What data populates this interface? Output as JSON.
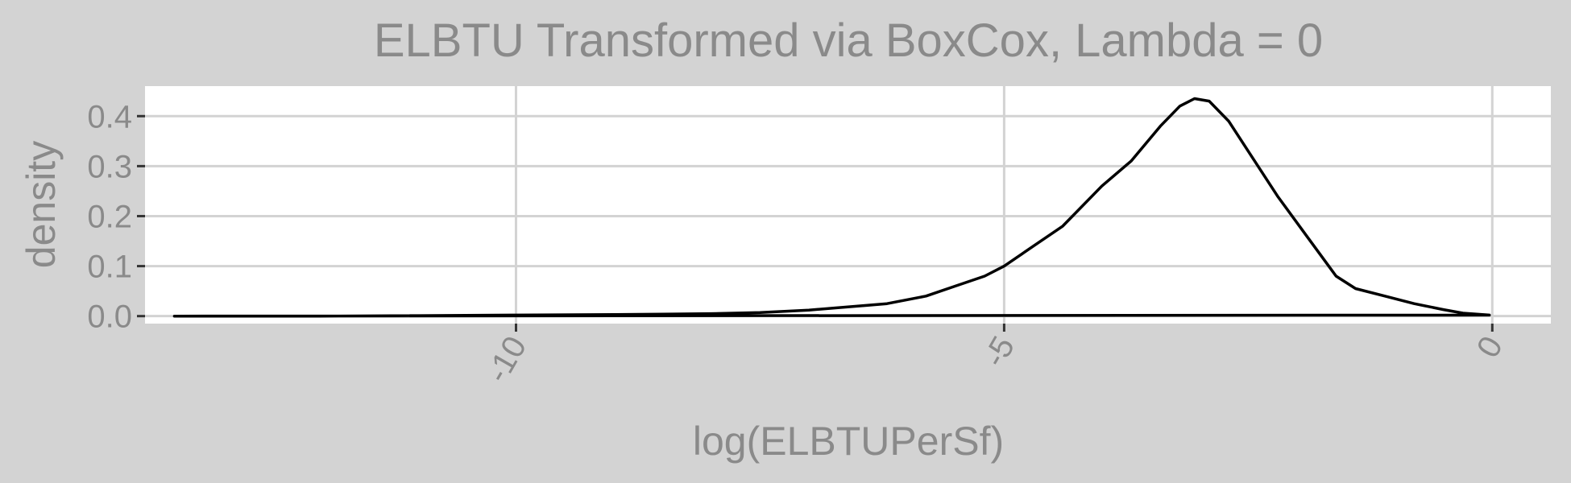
{
  "chart_data": {
    "type": "line",
    "title": "ELBTU Transformed via BoxCox, Lambda = 0",
    "xlabel": "log(ELBTUPerSf)",
    "ylabel": "density",
    "xlim": [
      -13.8,
      0.6
    ],
    "ylim": [
      -0.015,
      0.46
    ],
    "x_ticks": [
      -10,
      -5,
      0
    ],
    "x_tick_labels": [
      "-10",
      "-5",
      "0"
    ],
    "y_ticks": [
      0.0,
      0.1,
      0.2,
      0.3,
      0.4
    ],
    "y_tick_labels": [
      "0.0",
      "0.1",
      "0.2",
      "0.3",
      "0.4"
    ],
    "grid": true,
    "series": [
      {
        "x": [
          -13.5,
          -12,
          -11,
          -10,
          -9,
          -8.5,
          -8,
          -7.5,
          -7,
          -6.5,
          -6.2,
          -5.8,
          -5.5,
          -5.2,
          -5.0,
          -4.7,
          -4.4,
          -4.0,
          -3.7,
          -3.4,
          -3.2,
          -3.05,
          -2.9,
          -2.7,
          -2.5,
          -2.2,
          -1.9,
          -1.6,
          -1.4,
          -1.1,
          -0.8,
          -0.5,
          -0.3,
          -0.03
        ],
        "y": [
          0.0,
          0.0,
          0.001,
          0.002,
          0.003,
          0.004,
          0.005,
          0.007,
          0.012,
          0.02,
          0.025,
          0.04,
          0.06,
          0.08,
          0.1,
          0.14,
          0.18,
          0.26,
          0.31,
          0.38,
          0.42,
          0.435,
          0.43,
          0.39,
          0.33,
          0.24,
          0.16,
          0.08,
          0.055,
          0.04,
          0.025,
          0.013,
          0.006,
          0.002
        ]
      }
    ]
  }
}
